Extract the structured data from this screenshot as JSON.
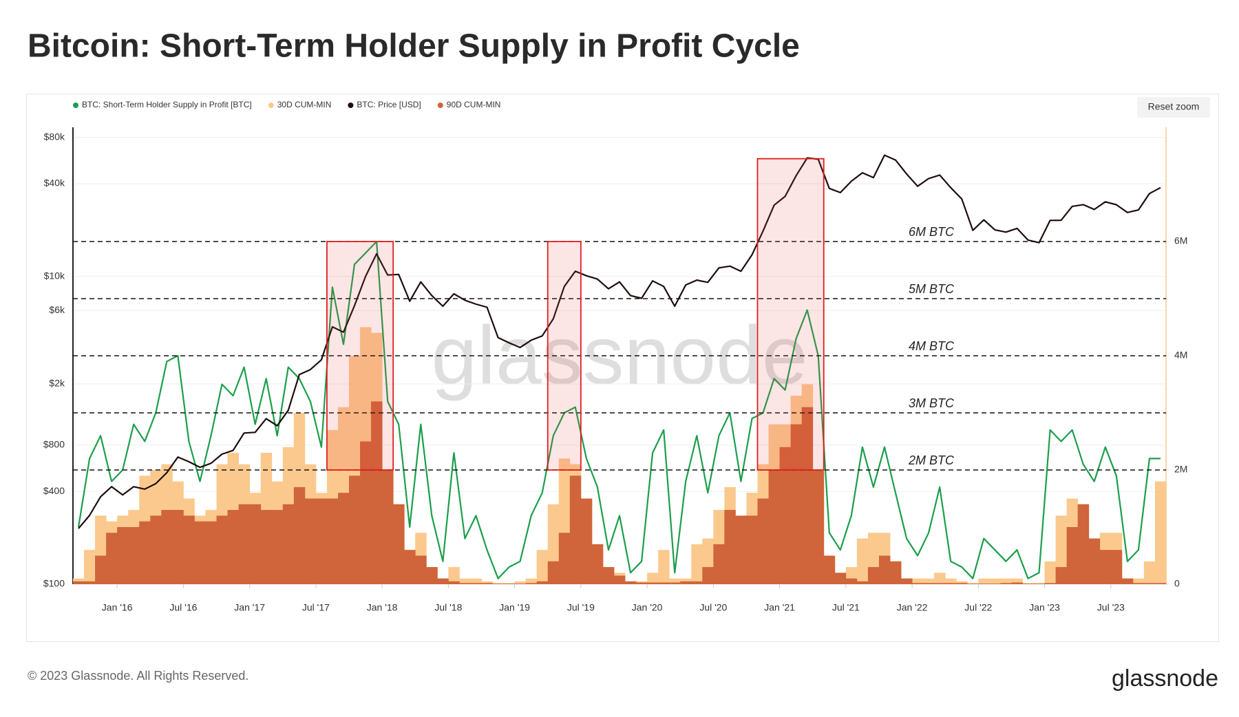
{
  "header": {
    "title": "Bitcoin: Short-Term Holder Supply in Profit Cycle"
  },
  "ui": {
    "reset_button": "Reset zoom",
    "watermark": "glassnode"
  },
  "footer": {
    "copyright": "© 2023 Glassnode. All Rights Reserved.",
    "logo": "glassnode"
  },
  "chart_data": {
    "type": "combo",
    "log_y": true,
    "grid": true,
    "legend": "top-left",
    "x": [
      "2015-09",
      "2015-10",
      "2015-11",
      "2015-12",
      "2016-01",
      "2016-02",
      "2016-03",
      "2016-04",
      "2016-05",
      "2016-06",
      "2016-07",
      "2016-08",
      "2016-09",
      "2016-10",
      "2016-11",
      "2016-12",
      "2017-01",
      "2017-02",
      "2017-03",
      "2017-04",
      "2017-05",
      "2017-06",
      "2017-07",
      "2017-08",
      "2017-09",
      "2017-10",
      "2017-11",
      "2017-12",
      "2018-01",
      "2018-02",
      "2018-03",
      "2018-04",
      "2018-05",
      "2018-06",
      "2018-07",
      "2018-08",
      "2018-09",
      "2018-10",
      "2018-11",
      "2018-12",
      "2019-01",
      "2019-02",
      "2019-03",
      "2019-04",
      "2019-05",
      "2019-06",
      "2019-07",
      "2019-08",
      "2019-09",
      "2019-10",
      "2019-11",
      "2019-12",
      "2020-01",
      "2020-02",
      "2020-03",
      "2020-04",
      "2020-05",
      "2020-06",
      "2020-07",
      "2020-08",
      "2020-09",
      "2020-10",
      "2020-11",
      "2020-12",
      "2021-01",
      "2021-02",
      "2021-03",
      "2021-04",
      "2021-05",
      "2021-06",
      "2021-07",
      "2021-08",
      "2021-09",
      "2021-10",
      "2021-11",
      "2021-12",
      "2022-01",
      "2022-02",
      "2022-03",
      "2022-04",
      "2022-05",
      "2022-06",
      "2022-07",
      "2022-08",
      "2022-09",
      "2022-10",
      "2022-11",
      "2022-12",
      "2023-01",
      "2023-02",
      "2023-03",
      "2023-04",
      "2023-05",
      "2023-06",
      "2023-07",
      "2023-08",
      "2023-09",
      "2023-10",
      "2023-11"
    ],
    "xlim": [
      "2015-09",
      "2023-12"
    ],
    "xticks": [
      {
        "value": "2016-01",
        "label": "Jan '16"
      },
      {
        "value": "2016-07",
        "label": "Jul '16"
      },
      {
        "value": "2017-01",
        "label": "Jan '17"
      },
      {
        "value": "2017-07",
        "label": "Jul '17"
      },
      {
        "value": "2018-01",
        "label": "Jan '18"
      },
      {
        "value": "2018-07",
        "label": "Jul '18"
      },
      {
        "value": "2019-01",
        "label": "Jan '19"
      },
      {
        "value": "2019-07",
        "label": "Jul '19"
      },
      {
        "value": "2020-01",
        "label": "Jan '20"
      },
      {
        "value": "2020-07",
        "label": "Jul '20"
      },
      {
        "value": "2021-01",
        "label": "Jan '21"
      },
      {
        "value": "2021-07",
        "label": "Jul '21"
      },
      {
        "value": "2022-01",
        "label": "Jan '22"
      },
      {
        "value": "2022-07",
        "label": "Jul '22"
      },
      {
        "value": "2023-01",
        "label": "Jan '23"
      },
      {
        "value": "2023-07",
        "label": "Jul '23"
      }
    ],
    "ylim": [
      100,
      93000
    ],
    "yticks": [
      {
        "value": 100,
        "label": "$100"
      },
      {
        "value": 400,
        "label": "$400"
      },
      {
        "value": 800,
        "label": "$800"
      },
      {
        "value": 2000,
        "label": "$2k"
      },
      {
        "value": 6000,
        "label": "$6k"
      },
      {
        "value": 10000,
        "label": "$10k"
      },
      {
        "value": 40000,
        "label": "$40k"
      },
      {
        "value": 80000,
        "label": "$80k"
      }
    ],
    "y2lim": [
      0,
      8000000
    ],
    "y2ticks": [
      0,
      {
        "value": 2000000,
        "label": "2M"
      },
      {
        "value": 4000000,
        "label": "4M"
      },
      {
        "value": 6000000,
        "label": "6M"
      }
    ],
    "series": [
      {
        "name": "BTC: Short-Term Holder Supply in Profit [BTC]",
        "color": "#1a9e4a",
        "kind": "line",
        "axis": "y2",
        "values": [
          1000000,
          2200000,
          2600000,
          1800000,
          2000000,
          2800000,
          2500000,
          3000000,
          3900000,
          4000000,
          2500000,
          1800000,
          2600000,
          3500000,
          3300000,
          3800000,
          2800000,
          3600000,
          2600000,
          3800000,
          3600000,
          3200000,
          2400000,
          5200000,
          4200000,
          5600000,
          5800000,
          6000000,
          3200000,
          2800000,
          1000000,
          2800000,
          1200000,
          400000,
          2300000,
          800000,
          1200000,
          600000,
          100000,
          300000,
          400000,
          1200000,
          1600000,
          2600000,
          3000000,
          3100000,
          2200000,
          1700000,
          600000,
          1200000,
          200000,
          400000,
          2300000,
          2700000,
          200000,
          1800000,
          2600000,
          1600000,
          2600000,
          3000000,
          1800000,
          2900000,
          3000000,
          3600000,
          3400000,
          4300000,
          4800000,
          4000000,
          900000,
          600000,
          1200000,
          2400000,
          1700000,
          2400000,
          1600000,
          800000,
          500000,
          900000,
          1700000,
          400000,
          300000,
          100000,
          800000,
          600000,
          400000,
          600000,
          100000,
          200000,
          2700000,
          2500000,
          2700000,
          2100000,
          1800000,
          2400000,
          1900000,
          400000,
          600000,
          2200000,
          2200000
        ]
      },
      {
        "name": "30D CUM-MIN",
        "color": "#fbc98e",
        "kind": "bar",
        "axis": "y2",
        "values": [
          100000,
          600000,
          1200000,
          1100000,
          1200000,
          1300000,
          1900000,
          2000000,
          2100000,
          1800000,
          1500000,
          1200000,
          1300000,
          2100000,
          2300000,
          2100000,
          1600000,
          2300000,
          1800000,
          2400000,
          3000000,
          2100000,
          1600000,
          2700000,
          3100000,
          4000000,
          4500000,
          4400000,
          2000000,
          1400000,
          600000,
          900000,
          300000,
          100000,
          300000,
          100000,
          100000,
          50000,
          20000,
          20000,
          50000,
          100000,
          600000,
          1400000,
          2200000,
          2100000,
          1500000,
          700000,
          300000,
          200000,
          50000,
          50000,
          200000,
          600000,
          100000,
          100000,
          700000,
          800000,
          1300000,
          1700000,
          1200000,
          1600000,
          2100000,
          2800000,
          2800000,
          3300000,
          3500000,
          2000000,
          500000,
          200000,
          300000,
          800000,
          900000,
          900000,
          400000,
          100000,
          100000,
          100000,
          200000,
          100000,
          50000,
          20000,
          100000,
          100000,
          100000,
          100000,
          20000,
          20000,
          400000,
          1200000,
          1500000,
          1400000,
          800000,
          900000,
          900000,
          100000,
          100000,
          400000,
          1800000
        ]
      },
      {
        "name": "BTC: Price [USD]",
        "color": "#1d0c0c",
        "kind": "line",
        "axis": "y",
        "values": [
          230,
          280,
          370,
          430,
          380,
          430,
          415,
          450,
          530,
          670,
          625,
          575,
          610,
          700,
          740,
          960,
          970,
          1190,
          1070,
          1350,
          2300,
          2480,
          2870,
          4700,
          4340,
          6450,
          10000,
          14000,
          10200,
          10300,
          6900,
          9200,
          7500,
          6400,
          7700,
          7000,
          6600,
          6300,
          4000,
          3700,
          3450,
          3850,
          4100,
          5300,
          8600,
          10800,
          10100,
          9600,
          8300,
          9200,
          7500,
          7200,
          9350,
          8600,
          6400,
          8800,
          9450,
          9150,
          11350,
          11650,
          10780,
          13800,
          19700,
          29000,
          33100,
          45100,
          58800,
          57700,
          37300,
          35000,
          41500,
          47100,
          43800,
          61300,
          57000,
          46300,
          38500,
          43200,
          45500,
          37700,
          31800,
          19900,
          23300,
          20050,
          19400,
          20500,
          17200,
          16550,
          23100,
          23150,
          28500,
          29250,
          27200,
          30500,
          29200,
          26000,
          27000,
          34500,
          37700
        ]
      },
      {
        "name": "90D CUM-MIN",
        "color": "#d0643a",
        "kind": "bar",
        "axis": "y2",
        "values": [
          50000,
          50000,
          500000,
          900000,
          1000000,
          1000000,
          1100000,
          1200000,
          1300000,
          1300000,
          1200000,
          1100000,
          1100000,
          1200000,
          1300000,
          1400000,
          1400000,
          1300000,
          1300000,
          1400000,
          1700000,
          1500000,
          1500000,
          1500000,
          1600000,
          1900000,
          2500000,
          3200000,
          2000000,
          1400000,
          600000,
          500000,
          300000,
          100000,
          50000,
          20000,
          20000,
          20000,
          10000,
          10000,
          10000,
          20000,
          50000,
          400000,
          900000,
          1900000,
          1500000,
          700000,
          300000,
          150000,
          50000,
          30000,
          30000,
          30000,
          30000,
          50000,
          50000,
          300000,
          700000,
          1300000,
          1200000,
          1200000,
          1500000,
          2000000,
          2400000,
          2800000,
          3100000,
          2000000,
          500000,
          200000,
          100000,
          50000,
          300000,
          500000,
          400000,
          100000,
          20000,
          20000,
          20000,
          20000,
          20000,
          10000,
          10000,
          10000,
          20000,
          30000,
          10000,
          10000,
          20000,
          300000,
          1000000,
          1400000,
          800000,
          600000,
          600000,
          100000,
          20000,
          20000,
          20000
        ]
      }
    ],
    "reference_lines": [
      {
        "value": 6000000,
        "label": "6M BTC"
      },
      {
        "value": 5000000,
        "label": "5M BTC"
      },
      {
        "value": 4000000,
        "label": "4M BTC"
      },
      {
        "value": 3000000,
        "label": "3M BTC"
      },
      {
        "value": 2000000,
        "label": "2M BTC"
      }
    ],
    "highlights": [
      {
        "start": "2017-08",
        "end": "2018-02",
        "low": 2000000,
        "high": 6000000
      },
      {
        "start": "2019-04",
        "end": "2019-07",
        "low": 2000000,
        "high": 6000000
      },
      {
        "start": "2020-11",
        "end": "2021-05",
        "low": 2000000,
        "high": 7450000
      }
    ]
  }
}
